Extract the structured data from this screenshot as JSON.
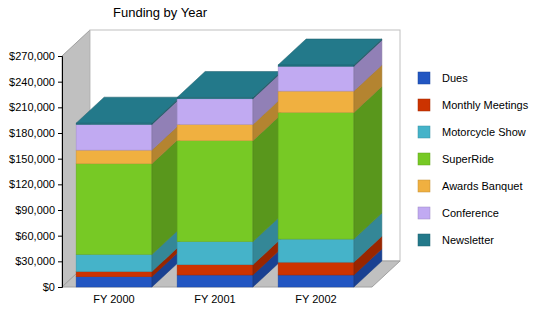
{
  "chart_data": {
    "type": "bar",
    "title": "Funding by Year",
    "categories": [
      "FY 2000",
      "FY 2001",
      "FY 2002"
    ],
    "series": [
      {
        "name": "Dues",
        "color": "#2256c2",
        "values": [
          12000,
          14000,
          14000
        ]
      },
      {
        "name": "Monthly Meetings",
        "color": "#cc3300",
        "values": [
          6000,
          12000,
          15000
        ]
      },
      {
        "name": "Motorcycle Show",
        "color": "#45b3c9",
        "values": [
          20000,
          27000,
          27000
        ]
      },
      {
        "name": "SuperRide",
        "color": "#77c925",
        "values": [
          106000,
          118000,
          148000
        ]
      },
      {
        "name": "Awards Banquet",
        "color": "#f0b040",
        "values": [
          16000,
          19000,
          25000
        ]
      },
      {
        "name": "Conference",
        "color": "#c1aaf2",
        "values": [
          30000,
          30000,
          29000
        ]
      },
      {
        "name": "Newsletter",
        "color": "#23798a",
        "values": [
          1500,
          1500,
          1500
        ]
      }
    ],
    "ylim": [
      0,
      270000
    ],
    "yticks": [
      {
        "value": 0,
        "label": "$0"
      },
      {
        "value": 30000,
        "label": "$30,000"
      },
      {
        "value": 60000,
        "label": "$60,000"
      },
      {
        "value": 90000,
        "label": "$90,000"
      },
      {
        "value": 120000,
        "label": "$120,000"
      },
      {
        "value": 150000,
        "label": "$150,000"
      },
      {
        "value": 180000,
        "label": "$180,000"
      },
      {
        "value": 210000,
        "label": "$210,000"
      },
      {
        "value": 240000,
        "label": "$240,000"
      },
      {
        "value": 270000,
        "label": "$270,000"
      }
    ],
    "stacked": true,
    "grid": false,
    "legend": "right"
  }
}
